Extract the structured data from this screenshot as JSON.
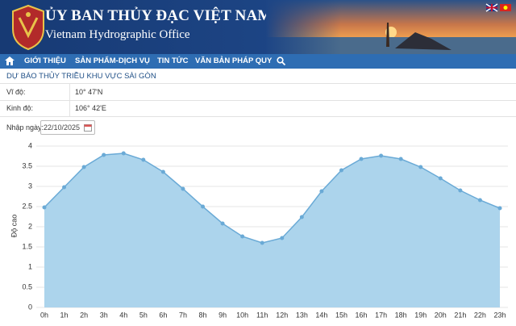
{
  "header": {
    "title": "ỦY BAN THỦY ĐẠC VIỆT NAM",
    "subtitle": "Vietnam Hydrographic Office"
  },
  "nav": {
    "items": [
      "GIỚI THIỆU",
      "SẢN PHẨM-DỊCH VỤ",
      "TIN TỨC",
      "VĂN BẢN PHÁP QUY"
    ]
  },
  "section_title": "DỰ BÁO THỦY TRIỀU KHU VỰC SÀI GÒN",
  "table": {
    "rows": [
      [
        "Vĩ độ:",
        "10° 47'N"
      ],
      [
        "Kinh độ:",
        "106° 42'E"
      ]
    ]
  },
  "date_input": {
    "label": "Nhập ngày:",
    "value": "22/10/2025"
  },
  "chart_data": {
    "type": "area",
    "ylabel": "Độ cao",
    "categories": [
      "0h",
      "1h",
      "2h",
      "3h",
      "4h",
      "5h",
      "6h",
      "7h",
      "8h",
      "9h",
      "10h",
      "11h",
      "12h",
      "13h",
      "14h",
      "15h",
      "16h",
      "17h",
      "18h",
      "19h",
      "20h",
      "21h",
      "22h",
      "23h"
    ],
    "values": [
      2.48,
      2.98,
      3.48,
      3.78,
      3.82,
      3.66,
      3.36,
      2.94,
      2.5,
      2.08,
      1.76,
      1.6,
      1.72,
      2.24,
      2.88,
      3.4,
      3.68,
      3.76,
      3.68,
      3.48,
      3.2,
      2.9,
      2.66,
      2.46
    ],
    "color": "#6aaad6",
    "fill": "#acd4ec",
    "ylim": [
      0,
      4
    ],
    "yticks": [
      0,
      0.5,
      1,
      1.5,
      2,
      2.5,
      3,
      3.5,
      4
    ],
    "grid": true
  }
}
